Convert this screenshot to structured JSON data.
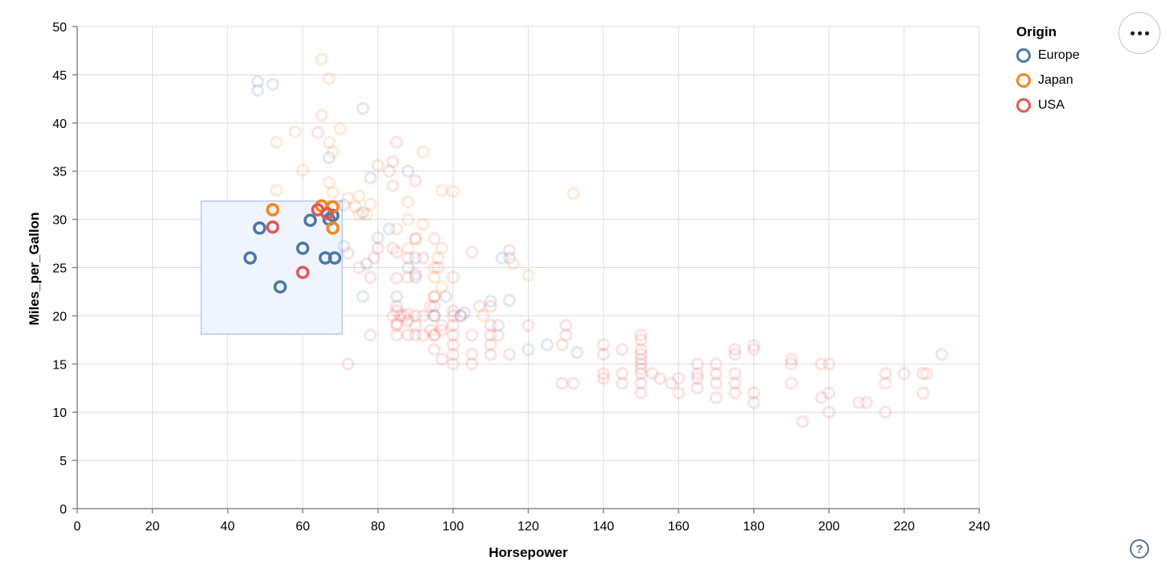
{
  "chart_data": {
    "type": "scatter",
    "title": "",
    "xlabel": "Horsepower",
    "ylabel": "Miles_per_Gallon",
    "xlim": [
      0,
      240
    ],
    "ylim": [
      0,
      50
    ],
    "xticks": [
      0,
      20,
      40,
      60,
      80,
      100,
      120,
      140,
      160,
      180,
      200,
      220,
      240
    ],
    "yticks": [
      0,
      5,
      10,
      15,
      20,
      25,
      30,
      35,
      40,
      45,
      50
    ],
    "grid": true,
    "colors": {
      "grid": "#dddddd",
      "axis_domain": "#888888",
      "tick_label": "#000000",
      "brush_fill": "#f0f4fc",
      "brush_stroke": "#b5cbf0"
    },
    "unselected_opacity": 0.16,
    "point_radius": 6.5,
    "point_stroke_width": 3.2,
    "brush": {
      "x": [
        33,
        70.5
      ],
      "y": [
        18.1,
        31.9
      ]
    },
    "legend": {
      "title": "Origin",
      "position": "top-right",
      "entries": [
        {
          "label": "Europe",
          "color": "#4c78a8"
        },
        {
          "label": "Japan",
          "color": "#f58518"
        },
        {
          "label": "USA",
          "color": "#e45756"
        }
      ]
    },
    "series": [
      {
        "name": "Europe",
        "color": "#4c78a8",
        "selected": [
          [
            46,
            26
          ],
          [
            48.5,
            29.1
          ],
          [
            54,
            23
          ],
          [
            60,
            27
          ],
          [
            62,
            29.9
          ],
          [
            66,
            26
          ],
          [
            68.5,
            26
          ],
          [
            67,
            30
          ],
          [
            68,
            30.4
          ]
        ],
        "points": [
          [
            48,
            43.4
          ],
          [
            48,
            44.3
          ],
          [
            52,
            44
          ],
          [
            76,
            41.5
          ],
          [
            67,
            36.4
          ],
          [
            78,
            34.3
          ],
          [
            88,
            35
          ],
          [
            71,
            31.5
          ],
          [
            76,
            30.7
          ],
          [
            83,
            29
          ],
          [
            80,
            28.1
          ],
          [
            77,
            25.4
          ],
          [
            88,
            25
          ],
          [
            90,
            24
          ],
          [
            90,
            26
          ],
          [
            113,
            26
          ],
          [
            115,
            26
          ],
          [
            115,
            21.6
          ],
          [
            110,
            21.5
          ],
          [
            103,
            20.3
          ],
          [
            112,
            19
          ],
          [
            98,
            22
          ],
          [
            102,
            20
          ],
          [
            125,
            17
          ],
          [
            133,
            16.2
          ],
          [
            120,
            16.5
          ],
          [
            71,
            27.2
          ],
          [
            76,
            22
          ],
          [
            85,
            22
          ],
          [
            95,
            20
          ]
        ]
      },
      {
        "name": "Japan",
        "color": "#f58518",
        "selected": [
          [
            52,
            31
          ],
          [
            65,
            31.4
          ],
          [
            68,
            31.3
          ],
          [
            68,
            29.1
          ]
        ],
        "points": [
          [
            65,
            46.6
          ],
          [
            67,
            44.6
          ],
          [
            65,
            40.8
          ],
          [
            70,
            39.4
          ],
          [
            58,
            39.1
          ],
          [
            53,
            38
          ],
          [
            92,
            37
          ],
          [
            68,
            37
          ],
          [
            60,
            35.1
          ],
          [
            67,
            33.8
          ],
          [
            53,
            33
          ],
          [
            97,
            33
          ],
          [
            132,
            32.7
          ],
          [
            88,
            31.8
          ],
          [
            75,
            32.4
          ],
          [
            72,
            32.2
          ],
          [
            74,
            31.3
          ],
          [
            68,
            32.8
          ],
          [
            77,
            30.5
          ],
          [
            78,
            31.6
          ],
          [
            75,
            30.5
          ],
          [
            88,
            30
          ],
          [
            85,
            29
          ],
          [
            90,
            28
          ],
          [
            97,
            27
          ],
          [
            88,
            27
          ],
          [
            96,
            26
          ],
          [
            116,
            25.4
          ],
          [
            120,
            24.2
          ],
          [
            95,
            25
          ],
          [
            95,
            24
          ],
          [
            88,
            24
          ],
          [
            97,
            23
          ],
          [
            95,
            22
          ],
          [
            108,
            20
          ],
          [
            95,
            18
          ],
          [
            100,
            32.9
          ],
          [
            92,
            29.5
          ],
          [
            67,
            38
          ]
        ]
      },
      {
        "name": "USA",
        "color": "#e45756",
        "selected": [
          [
            52,
            29.2
          ],
          [
            60,
            24.5
          ],
          [
            64,
            31
          ],
          [
            66.5,
            30.6
          ]
        ],
        "points": [
          [
            85,
            38
          ],
          [
            84,
            36
          ],
          [
            83,
            35
          ],
          [
            90,
            34
          ],
          [
            84,
            33.5
          ],
          [
            64,
            39
          ],
          [
            80,
            35.6
          ],
          [
            72,
            26.5
          ],
          [
            75,
            25
          ],
          [
            78,
            24
          ],
          [
            79,
            26
          ],
          [
            80,
            27
          ],
          [
            84,
            27
          ],
          [
            88,
            26
          ],
          [
            92,
            26
          ],
          [
            90,
            28
          ],
          [
            95,
            28
          ],
          [
            85,
            23.9
          ],
          [
            85,
            26.6
          ],
          [
            105,
            26.6
          ],
          [
            115,
            26.8
          ],
          [
            90,
            24.3
          ],
          [
            96,
            25
          ],
          [
            100,
            24
          ],
          [
            85,
            20.5
          ],
          [
            85,
            21
          ],
          [
            85,
            19.2
          ],
          [
            87,
            20
          ],
          [
            90,
            20
          ],
          [
            88,
            20.2
          ],
          [
            84,
            20
          ],
          [
            86,
            20
          ],
          [
            85,
            19
          ],
          [
            88,
            19.5
          ],
          [
            90,
            19
          ],
          [
            95,
            20
          ],
          [
            95,
            21
          ],
          [
            95,
            22
          ],
          [
            97,
            18.5
          ],
          [
            92,
            20
          ],
          [
            94,
            21
          ],
          [
            100,
            20.5
          ],
          [
            102,
            20
          ],
          [
            107,
            21
          ],
          [
            110,
            21
          ],
          [
            88,
            18
          ],
          [
            85,
            18
          ],
          [
            92,
            18
          ],
          [
            94,
            18.5
          ],
          [
            90,
            18
          ],
          [
            95,
            18
          ],
          [
            97,
            19
          ],
          [
            100,
            19
          ],
          [
            100,
            20
          ],
          [
            100,
            18
          ],
          [
            100,
            17
          ],
          [
            100,
            16
          ],
          [
            100,
            15
          ],
          [
            105,
            16
          ],
          [
            105,
            15
          ],
          [
            105,
            18
          ],
          [
            110,
            16
          ],
          [
            110,
            17
          ],
          [
            110,
            18
          ],
          [
            110,
            19
          ],
          [
            112,
            18
          ],
          [
            115,
            16
          ],
          [
            120,
            19
          ],
          [
            130,
            19
          ],
          [
            130,
            18
          ],
          [
            129,
            17
          ],
          [
            78,
            18
          ],
          [
            72,
            15
          ],
          [
            95,
            16.5
          ],
          [
            97,
            15.5
          ],
          [
            129,
            13
          ],
          [
            132,
            13
          ],
          [
            140,
            17
          ],
          [
            140,
            16
          ],
          [
            140,
            13.5
          ],
          [
            140,
            14
          ],
          [
            145,
            13
          ],
          [
            145,
            14
          ],
          [
            145,
            16.5
          ],
          [
            150,
            18
          ],
          [
            150,
            17.5
          ],
          [
            150,
            16.5
          ],
          [
            150,
            16
          ],
          [
            150,
            15.5
          ],
          [
            150,
            15
          ],
          [
            150,
            14.5
          ],
          [
            150,
            14
          ],
          [
            150,
            13
          ],
          [
            150,
            12
          ],
          [
            153,
            14
          ],
          [
            155,
            13.5
          ],
          [
            158,
            13
          ],
          [
            160,
            13.5
          ],
          [
            160,
            12
          ],
          [
            165,
            15
          ],
          [
            165,
            14
          ],
          [
            165,
            13.5
          ],
          [
            165,
            12.5
          ],
          [
            170,
            15
          ],
          [
            170,
            14
          ],
          [
            170,
            13
          ],
          [
            170,
            11.5
          ],
          [
            175,
            16.5
          ],
          [
            175,
            16
          ],
          [
            175,
            14
          ],
          [
            175,
            13
          ],
          [
            175,
            12
          ],
          [
            180,
            16.9
          ],
          [
            180,
            16.5
          ],
          [
            180,
            12
          ],
          [
            180,
            11
          ],
          [
            190,
            15.5
          ],
          [
            190,
            15
          ],
          [
            190,
            13
          ],
          [
            193,
            9
          ],
          [
            198,
            15
          ],
          [
            198,
            11.5
          ],
          [
            200,
            15
          ],
          [
            200,
            12
          ],
          [
            200,
            10
          ],
          [
            208,
            11
          ],
          [
            210,
            11
          ],
          [
            215,
            14
          ],
          [
            215,
            13
          ],
          [
            215,
            10
          ],
          [
            220,
            14
          ],
          [
            225,
            14
          ],
          [
            226,
            14
          ],
          [
            225,
            12
          ],
          [
            230,
            16
          ]
        ]
      }
    ]
  },
  "toolbar": {
    "menu_label": "•••",
    "help_label": "?"
  }
}
